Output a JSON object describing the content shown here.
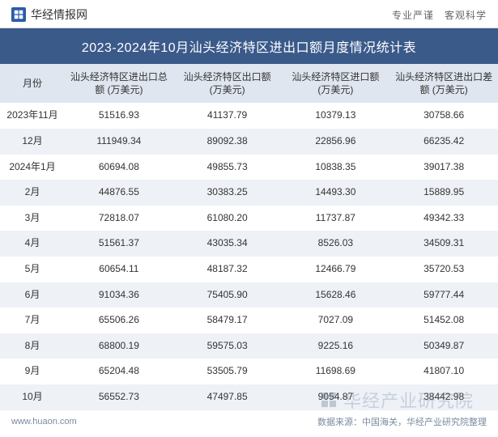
{
  "header": {
    "site_name": "华经情报网",
    "tagline_1": "专业严谨",
    "tagline_2": "客观科学"
  },
  "title": "2023-2024年10月汕头经济特区进出口额月度情况统计表",
  "table": {
    "columns": [
      "月份",
      "汕头经济特区进出口总额 (万美元)",
      "汕头经济特区出口额 (万美元)",
      "汕头经济特区进口额 (万美元)",
      "汕头经济特区进出口差额 (万美元)"
    ],
    "rows": [
      [
        "2023年11月",
        "51516.93",
        "41137.79",
        "10379.13",
        "30758.66"
      ],
      [
        "12月",
        "111949.34",
        "89092.38",
        "22856.96",
        "66235.42"
      ],
      [
        "2024年1月",
        "60694.08",
        "49855.73",
        "10838.35",
        "39017.38"
      ],
      [
        "2月",
        "44876.55",
        "30383.25",
        "14493.30",
        "15889.95"
      ],
      [
        "3月",
        "72818.07",
        "61080.20",
        "11737.87",
        "49342.33"
      ],
      [
        "4月",
        "51561.37",
        "43035.34",
        "8526.03",
        "34509.31"
      ],
      [
        "5月",
        "60654.11",
        "48187.32",
        "12466.79",
        "35720.53"
      ],
      [
        "6月",
        "91034.36",
        "75405.90",
        "15628.46",
        "59777.44"
      ],
      [
        "7月",
        "65506.26",
        "58479.17",
        "7027.09",
        "51452.08"
      ],
      [
        "8月",
        "68800.19",
        "59575.03",
        "9225.16",
        "50349.87"
      ],
      [
        "9月",
        "65204.48",
        "53505.79",
        "11698.69",
        "41807.10"
      ],
      [
        "10月",
        "56552.73",
        "47497.85",
        "9054.87",
        "38442.98"
      ]
    ]
  },
  "footer": {
    "url": "www.huaon.com",
    "source": "数据来源：中国海关，华经产业研究院整理"
  },
  "watermark": "华经产业研究院",
  "styling": {
    "header_divider": "#e0e0e0",
    "title_bg": "#3a5a8a",
    "title_color": "#ffffff",
    "thead_bg": "#dfe6ef",
    "row_odd_bg": "#ffffff",
    "row_even_bg": "#eef2f7",
    "text_color": "#333333",
    "footer_color": "#7a8aa0",
    "site_name_fontsize": 14,
    "title_fontsize": 16,
    "th_fontsize": 12,
    "td_fontsize": 12,
    "footer_fontsize": 11,
    "watermark_color": "rgba(100,120,150,0.28)",
    "watermark_fontsize": 22,
    "logo_color": "#2a5caa"
  }
}
